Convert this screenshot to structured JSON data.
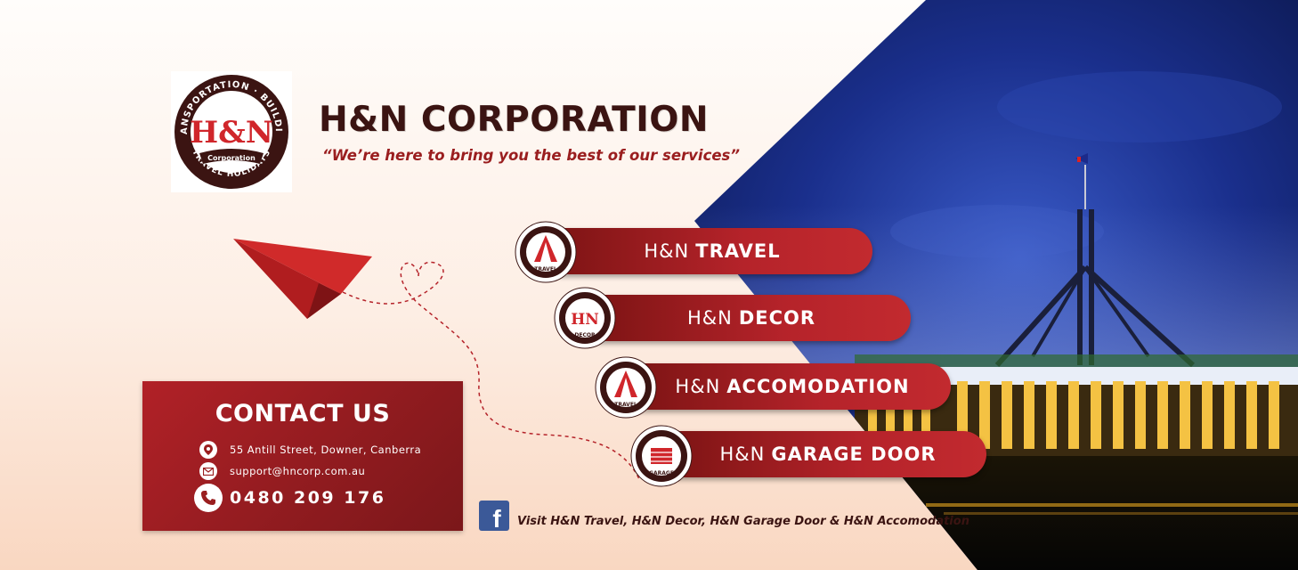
{
  "brand": {
    "logo_top_text": "TRANSPORTATION · BUILDING",
    "logo_bottom_text": "TRAVEL HOLIDAYS",
    "logo_mark": "H&N",
    "logo_ribbon": "Corporation",
    "title": "H&N CORPORATION",
    "tagline": "“We’re here to bring you the best of our services”"
  },
  "services": [
    {
      "prefix": "H&N",
      "name": "TRAVEL",
      "logo_label": "TRAVEL"
    },
    {
      "prefix": "H&N",
      "name": "DECOR",
      "logo_label": "DECOR"
    },
    {
      "prefix": "H&N",
      "name": "ACCOMODATION",
      "logo_label": "TRAVEL"
    },
    {
      "prefix": "H&N",
      "name": "GARAGE DOOR",
      "logo_label": "GARAGE"
    }
  ],
  "contact": {
    "title": "CONTACT US",
    "address": "55 Antill Street, Downer, Canberra",
    "email": "support@hncorp.com.au",
    "phone": "0480 209 176",
    "icons": [
      "location-pin-icon",
      "mail-icon",
      "phone-icon"
    ]
  },
  "social": {
    "icon": "facebook-icon",
    "visit": "Visit",
    "pages": "H&N Travel, H&N Decor, H&N Garage Door",
    "amp": "&",
    "last": "H&N Accomodation"
  },
  "colors": {
    "brand_red": "#b5232a",
    "dark_red": "#7d1414",
    "brown": "#3b1412",
    "night_blue": "#0c1a5e",
    "facebook": "#3b5998"
  }
}
